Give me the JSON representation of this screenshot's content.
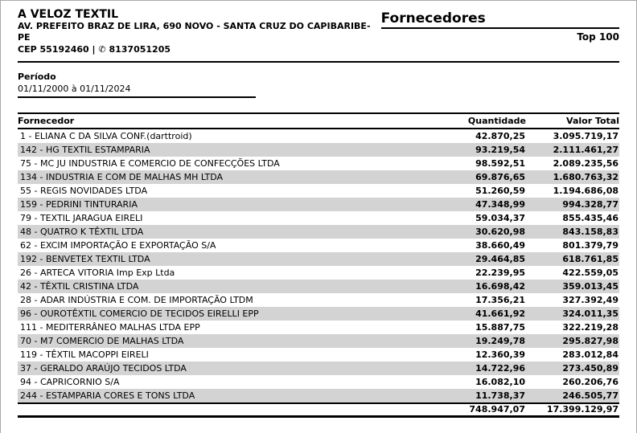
{
  "company": {
    "name": "A VELOZ TEXTIL",
    "address": "AV. PREFEITO BRAZ DE LIRA, 690 NOVO - SANTA CRUZ DO CAPIBARIBE-PE",
    "cep_label": "CEP 55192460 |",
    "phone_icon": "✆",
    "phone": "8137051205"
  },
  "report": {
    "title": "Fornecedores",
    "subtitle": "Top 100"
  },
  "period": {
    "label": "Período",
    "value": "01/11/2000 à 01/11/2024"
  },
  "table": {
    "columns": {
      "supplier": "Fornecedor",
      "quantity": "Quantidade",
      "total": "Valor Total"
    },
    "rows": [
      {
        "name": "1 - ELIANA C DA SILVA CONF.(darttroid)",
        "qty": "42.870,25",
        "total": "3.095.719,17"
      },
      {
        "name": "142 - HG TEXTIL ESTAMPARIA",
        "qty": "93.219,54",
        "total": "2.111.461,27"
      },
      {
        "name": "75 - MC JU INDUSTRIA E COMERCIO DE CONFECÇÕES LTDA",
        "qty": "98.592,51",
        "total": "2.089.235,56"
      },
      {
        "name": "134 - INDUSTRIA E COM DE MALHAS MH LTDA",
        "qty": "69.876,65",
        "total": "1.680.763,32"
      },
      {
        "name": "55 - REGIS NOVIDADES LTDA",
        "qty": "51.260,59",
        "total": "1.194.686,08"
      },
      {
        "name": "159 - PEDRINI TINTURARIA",
        "qty": "47.348,99",
        "total": "994.328,77"
      },
      {
        "name": "79 - TEXTIL JARAGUA EIRELI",
        "qty": "59.034,37",
        "total": "855.435,46"
      },
      {
        "name": "48 - QUATRO K TÊXTIL LTDA",
        "qty": "30.620,98",
        "total": "843.158,83"
      },
      {
        "name": "62 - EXCIM IMPORTAÇÃO E EXPORTAÇÃO S/A",
        "qty": "38.660,49",
        "total": "801.379,79"
      },
      {
        "name": "192 - BENVETEX TEXTIL LTDA",
        "qty": "29.464,85",
        "total": "618.761,85"
      },
      {
        "name": "26 - ARTECA VITORIA Imp Exp Ltda",
        "qty": "22.239,95",
        "total": "422.559,05"
      },
      {
        "name": "42 - TÊXTIL CRISTINA LTDA",
        "qty": "16.698,42",
        "total": "359.013,45"
      },
      {
        "name": "28 - ADAR INDÚSTRIA E COM. DE IMPORTAÇÃO LTDM",
        "qty": "17.356,21",
        "total": "327.392,49"
      },
      {
        "name": "96 - OUROTÊXTIL COMERCIO DE TECIDOS EIRELLI EPP",
        "qty": "41.661,92",
        "total": "324.011,35"
      },
      {
        "name": "111 - MEDITERRÂNEO MALHAS LTDA EPP",
        "qty": "15.887,75",
        "total": "322.219,28"
      },
      {
        "name": "70 - M7 COMERCIO DE MALHAS LTDA",
        "qty": "19.249,78",
        "total": "295.827,98"
      },
      {
        "name": "119 - TÊXTIL MACOPPI EIRELI",
        "qty": "12.360,39",
        "total": "283.012,84"
      },
      {
        "name": "37 - GERALDO ARAÚJO TECIDOS LTDA",
        "qty": "14.722,96",
        "total": "273.450,89"
      },
      {
        "name": "94 - CAPRICORNIO S/A",
        "qty": "16.082,10",
        "total": "260.206,76"
      },
      {
        "name": "244 - ESTAMPARIA CORES E TONS LTDA",
        "qty": "11.738,37",
        "total": "246.505,77"
      }
    ],
    "grand_total": {
      "qty": "748.947,07",
      "total": "17.399.129,97"
    }
  },
  "colors": {
    "row_alternate": "#d3d3d3",
    "rule": "#000000",
    "page_edge": "#a9a9a9"
  }
}
